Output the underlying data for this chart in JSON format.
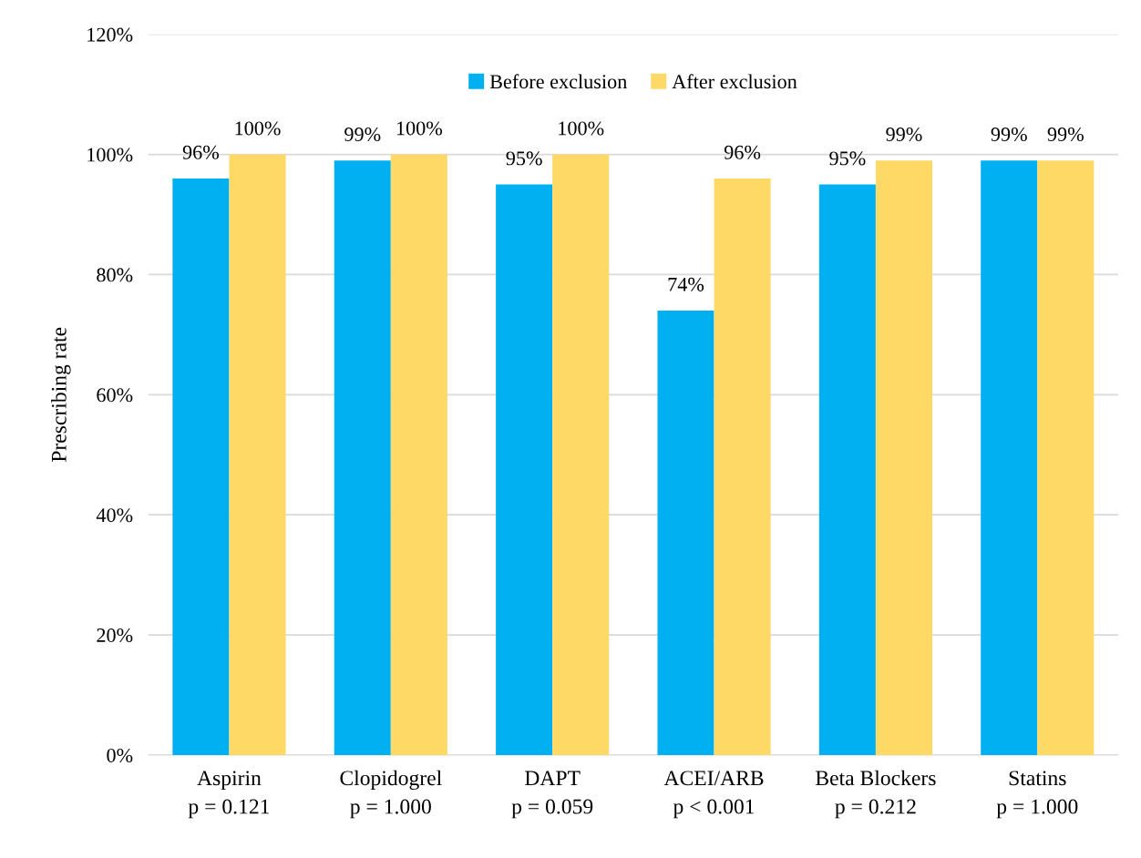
{
  "chart_data": {
    "type": "bar",
    "ylabel": "Prescribing rate",
    "categories": [
      "Aspirin\np = 0.121",
      "Clopidogrel\np = 1.000",
      "DAPT\np = 0.059",
      "ACEI/ARB\np < 0.001",
      "Beta Blockers\np = 0.212",
      "Statins\np = 1.000"
    ],
    "series": [
      {
        "name": "Before exclusion",
        "color": "#00b0f0",
        "values": [
          96,
          99,
          95,
          74,
          95,
          99
        ],
        "value_labels": [
          "96%",
          "99%",
          "95%",
          "74%",
          "95%",
          "99%"
        ]
      },
      {
        "name": "After exclusion",
        "color": "#ffd966",
        "values": [
          100,
          100,
          100,
          96,
          99,
          99
        ],
        "value_labels": [
          "100%",
          "100%",
          "100%",
          "96%",
          "99%",
          "99%"
        ]
      }
    ],
    "ylim": [
      0,
      120
    ],
    "yticks": [
      {
        "value": 0,
        "label": "0%"
      },
      {
        "value": 20,
        "label": "20%"
      },
      {
        "value": 40,
        "label": "40%"
      },
      {
        "value": 60,
        "label": "60%"
      },
      {
        "value": 80,
        "label": "80%"
      },
      {
        "value": 100,
        "label": "100%"
      },
      {
        "value": 120,
        "label": "120%"
      }
    ],
    "grid": "y",
    "legend": "top"
  }
}
